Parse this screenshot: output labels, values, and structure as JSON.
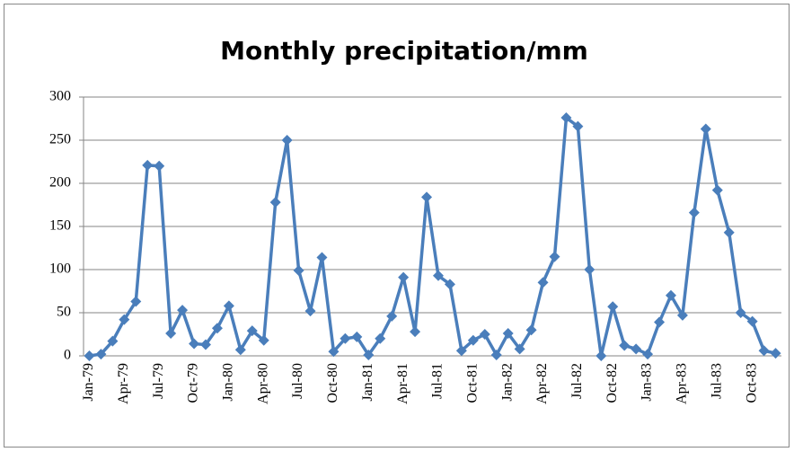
{
  "chart_data": {
    "type": "line",
    "title": "Monthly precipitation/mm",
    "categories": [
      "Jan-79",
      null,
      null,
      "Apr-79",
      null,
      null,
      "Jul-79",
      null,
      null,
      "Oct-79",
      null,
      null,
      "Jan-80",
      null,
      null,
      "Apr-80",
      null,
      null,
      "Jul-80",
      null,
      null,
      "Oct-80",
      null,
      null,
      "Jan-81",
      null,
      null,
      "Apr-81",
      null,
      null,
      "Jul-81",
      null,
      null,
      "Oct-81",
      null,
      null,
      "Jan-82",
      null,
      null,
      "Apr-82",
      null,
      null,
      "Jul-82",
      null,
      null,
      "Oct-82",
      null,
      null,
      "Jan-83",
      null,
      null,
      "Apr-83",
      null,
      null,
      "Jul-83",
      null,
      null,
      "Oct-83",
      null,
      null
    ],
    "values": [
      0,
      2,
      17,
      42,
      63,
      221,
      220,
      26,
      53,
      14,
      13,
      32,
      58,
      7,
      29,
      18,
      178,
      250,
      99,
      52,
      114,
      5,
      20,
      22,
      1,
      20,
      46,
      91,
      28,
      184,
      93,
      83,
      6,
      18,
      25,
      1,
      26,
      8,
      30,
      85,
      115,
      276,
      266,
      100,
      0,
      57,
      12,
      8,
      2,
      39,
      70,
      47,
      166,
      263,
      192,
      143,
      50,
      40,
      6,
      3
    ],
    "color": "#4a7ebb",
    "ylim": [
      0,
      300
    ],
    "yticks": [
      0,
      50,
      100,
      150,
      200,
      250,
      300
    ],
    "grid": true
  }
}
